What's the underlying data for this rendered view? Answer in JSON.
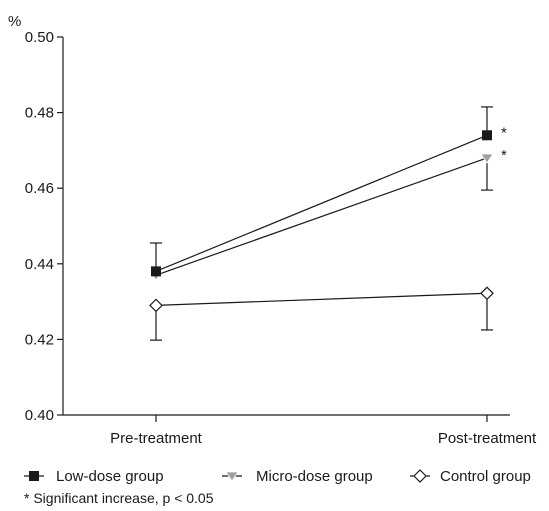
{
  "chart_data": {
    "type": "line",
    "title": "",
    "xlabel": "",
    "ylabel": "%",
    "categories": [
      "Pre-treatment",
      "Post-treatment"
    ],
    "ylim": [
      0.4,
      0.5
    ],
    "yticks": [
      "0.40",
      "0.42",
      "0.44",
      "0.46",
      "0.48",
      "0.50"
    ],
    "grid": false,
    "legend_position": "bottom",
    "series": [
      {
        "name": "Low-dose group",
        "values": [
          0.438,
          0.474
        ],
        "error_low": [
          0.438,
          0.474
        ],
        "error_high": [
          0.4455,
          0.4815
        ],
        "marker": "filled-square",
        "color": "#1a1a1a",
        "annotations": [
          "",
          "*"
        ]
      },
      {
        "name": "Micro-dose group",
        "values": [
          0.437,
          0.468
        ],
        "error_low": [
          0.437,
          0.4595
        ],
        "error_high": [
          0.437,
          0.468
        ],
        "marker": "gray-triangle-down",
        "color": "#999999",
        "annotations": [
          "",
          "*"
        ]
      },
      {
        "name": "Control group",
        "values": [
          0.429,
          0.4322
        ],
        "error_low": [
          0.4198,
          0.4225
        ],
        "error_high": [
          0.429,
          0.4322
        ],
        "marker": "open-diamond",
        "color": "#1a1a1a",
        "annotations": [
          "",
          ""
        ]
      }
    ],
    "footnote": "* Significant increase, p < 0.05"
  }
}
